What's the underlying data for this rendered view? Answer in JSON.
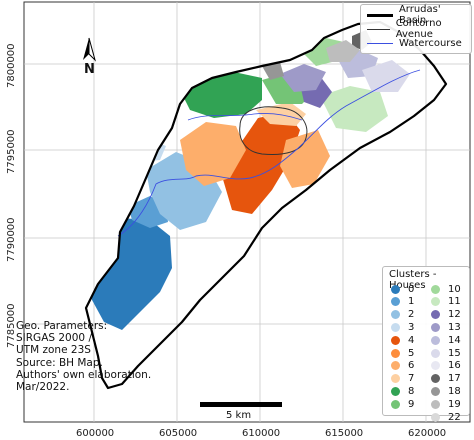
{
  "map": {
    "x_ticks": [
      "600000",
      "605000",
      "610000",
      "615000",
      "620000"
    ],
    "y_ticks": [
      "7800000",
      "7795000",
      "7790000",
      "7785000"
    ]
  },
  "legend": {
    "items": [
      {
        "label": "Arrudas' Basin",
        "color": "#000000",
        "style": "thick"
      },
      {
        "label": "Contorno Avenue",
        "color": "#333333",
        "style": "thin"
      },
      {
        "label": "Watercourse",
        "color": "#3b4fe0",
        "style": "thin"
      }
    ]
  },
  "clusters": {
    "title": "Clusters - Houses",
    "items": [
      {
        "label": "0",
        "color": "#2b7bba"
      },
      {
        "label": "1",
        "color": "#5a9fd4"
      },
      {
        "label": "2",
        "color": "#92c1e3"
      },
      {
        "label": "3",
        "color": "#c6dcef"
      },
      {
        "label": "4",
        "color": "#e6550d"
      },
      {
        "label": "5",
        "color": "#fd8d3c"
      },
      {
        "label": "6",
        "color": "#fdae6b"
      },
      {
        "label": "7",
        "color": "#fdd0a2"
      },
      {
        "label": "8",
        "color": "#31a354"
      },
      {
        "label": "9",
        "color": "#74c476"
      },
      {
        "label": "10",
        "color": "#a1d99b"
      },
      {
        "label": "11",
        "color": "#c7e9c0"
      },
      {
        "label": "12",
        "color": "#756bb1"
      },
      {
        "label": "13",
        "color": "#9e9ac8"
      },
      {
        "label": "14",
        "color": "#bcbddc"
      },
      {
        "label": "15",
        "color": "#dadaeb"
      },
      {
        "label": "16",
        "color": "#e8e8f2"
      },
      {
        "label": "17",
        "color": "#636363"
      },
      {
        "label": "18",
        "color": "#969696"
      },
      {
        "label": "19",
        "color": "#bdbdbd"
      },
      {
        "label": "22",
        "color": "#d9d9d9"
      }
    ]
  },
  "notes": {
    "line1": "Geo. Parameters:",
    "line2": "SIRGAS 2000 /",
    "line3": "UTM zone 23S",
    "line4": "Source: BH Map.",
    "line5": "Authors' own elaboration.",
    "line6": "Mar/2022."
  },
  "scale_bar": {
    "label": "5 km"
  },
  "north": {
    "label": "N"
  }
}
